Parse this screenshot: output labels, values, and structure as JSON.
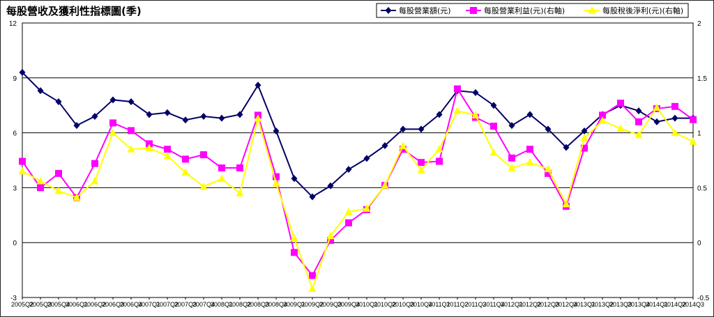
{
  "chart_data": {
    "type": "line",
    "title": "每股營收及獲利性指標圖(季)",
    "legend_position": "top-right",
    "grid": "horizontal",
    "y_left": {
      "ylim": [
        -3,
        12
      ],
      "ticks": [
        -3,
        0,
        3,
        6,
        9,
        12
      ],
      "tick_labels": [
        "-3",
        "0",
        "3",
        "6",
        "9",
        "12"
      ]
    },
    "y_right": {
      "ylim": [
        -0.5,
        2
      ],
      "ticks": [
        -0.5,
        0,
        0.5,
        1,
        1.5,
        2
      ],
      "tick_labels": [
        "-0.5",
        "0",
        "0.5",
        "1",
        "1.5",
        "2"
      ]
    },
    "categories": [
      "2005Q2",
      "2005Q3",
      "2005Q4",
      "2006Q1",
      "2006Q2",
      "2006Q3",
      "2006Q4",
      "2007Q1",
      "2007Q2",
      "2007Q3",
      "2007Q4",
      "2008Q1",
      "2008Q2",
      "2008Q3",
      "2008Q4",
      "2009Q1",
      "2009Q2",
      "2009Q3",
      "2009Q4",
      "2010Q1",
      "2010Q2",
      "2010Q3",
      "2010Q4",
      "2011Q1",
      "2011Q2",
      "2011Q3",
      "2011Q4",
      "2012Q1",
      "2012Q2",
      "2012Q3",
      "2012Q4",
      "2013Q1",
      "2013Q2",
      "2013Q3",
      "2013Q4",
      "2014Q1",
      "2014Q2",
      "2014Q3"
    ],
    "series": [
      {
        "name": "每股營業額(元)",
        "axis": "left",
        "color": "#000066",
        "marker": "diamond",
        "values": [
          9.3,
          8.3,
          7.7,
          6.4,
          6.9,
          7.8,
          7.7,
          7.0,
          7.1,
          6.7,
          6.9,
          6.8,
          7.0,
          8.6,
          6.1,
          3.5,
          2.5,
          3.1,
          4.0,
          4.6,
          5.3,
          6.2,
          6.2,
          7.0,
          8.3,
          8.2,
          7.5,
          6.4,
          7.0,
          6.2,
          5.2,
          6.1,
          7.0,
          7.5,
          7.2,
          6.6,
          6.8,
          6.8
        ]
      },
      {
        "name": "每股營業利益(元)(右軸)",
        "axis": "right",
        "color": "#ff00ff",
        "marker": "square",
        "values": [
          0.74,
          0.5,
          0.63,
          0.41,
          0.72,
          1.09,
          1.02,
          0.9,
          0.85,
          0.76,
          0.8,
          0.68,
          0.68,
          1.16,
          0.6,
          -0.09,
          -0.3,
          0.02,
          0.18,
          0.3,
          0.52,
          0.85,
          0.73,
          0.74,
          1.4,
          1.14,
          1.06,
          0.77,
          0.85,
          0.63,
          0.33,
          0.86,
          1.16,
          1.27,
          1.1,
          1.22,
          1.24,
          1.12
        ]
      },
      {
        "name": "每股稅後淨利(元)(右軸)",
        "axis": "right",
        "color": "#ffff00",
        "marker": "triangle",
        "values": [
          0.65,
          0.56,
          0.47,
          0.41,
          0.56,
          1.0,
          0.85,
          0.86,
          0.79,
          0.64,
          0.51,
          0.58,
          0.45,
          1.13,
          0.54,
          0.04,
          -0.42,
          0.06,
          0.28,
          0.31,
          0.52,
          0.88,
          0.66,
          0.85,
          1.2,
          1.16,
          0.82,
          0.68,
          0.73,
          0.67,
          0.35,
          0.95,
          1.11,
          1.04,
          0.98,
          1.23,
          1.0,
          0.92
        ]
      }
    ]
  }
}
